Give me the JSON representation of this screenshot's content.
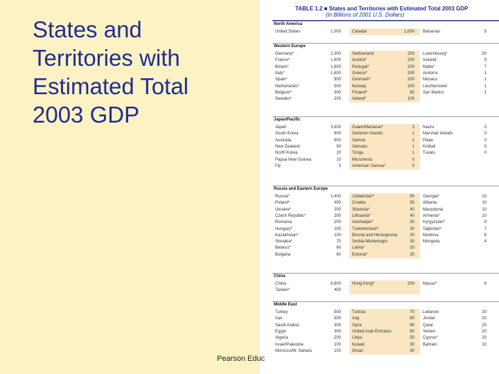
{
  "slide": {
    "title": "States and Territories with Estimated Total 2003 GDP",
    "footer": "Pearson Educ"
  },
  "table": {
    "title": "TABLE 1.2 ■ States and Territories with Estimated Total 2003 GDP",
    "subtitle": "(In Billions of 2001 U.S. Dollars)",
    "regions": [
      {
        "name": "North America",
        "rows": [
          [
            [
              "United States",
              "1,000"
            ],
            [
              "Canada",
              "1,000"
            ],
            [
              "Bahamas",
              "5"
            ]
          ]
        ]
      },
      {
        "name": "Western Europe",
        "rows": [
          [
            [
              "Germany*",
              "2,300"
            ],
            [
              "Switzerland",
              "200"
            ],
            [
              "Luxembourg*",
              "20"
            ]
          ],
          [
            [
              "France*",
              "1,600"
            ],
            [
              "Austria*",
              "200"
            ],
            [
              "Iceland",
              "9"
            ]
          ],
          [
            [
              "Britain*",
              "1,600"
            ],
            [
              "Portugal*",
              "200"
            ],
            [
              "Malta*",
              "7"
            ]
          ],
          [
            [
              "Italy*",
              "1,600"
            ],
            [
              "Greece*",
              "200"
            ],
            [
              "Andorra",
              "1"
            ]
          ],
          [
            [
              "Spain*",
              "900"
            ],
            [
              "Denmark*",
              "200"
            ],
            [
              "Monaco",
              "1"
            ]
          ],
          [
            [
              "Netherlands*",
              "500"
            ],
            [
              "Norway",
              "200"
            ],
            [
              "Liechtenstein",
              "1"
            ]
          ],
          [
            [
              "Belgium*",
              "300"
            ],
            [
              "Finland*",
              "80"
            ],
            [
              "San Marino",
              "1"
            ]
          ],
          [
            [
              "Sweden*",
              "200"
            ],
            [
              "Ireland*",
              "100"
            ],
            [
              "",
              ""
            ]
          ]
        ]
      },
      {
        "name": "Japan/Pacific",
        "rows": [
          [
            [
              "Japan",
              "3,600"
            ],
            [
              "Guam/Marianas*",
              "3"
            ],
            [
              "Nauru",
              "0"
            ]
          ],
          [
            [
              "South Korea",
              "900"
            ],
            [
              "Solomon Islands",
              "1"
            ],
            [
              "Marshall Islands",
              "0"
            ]
          ],
          [
            [
              "Australia",
              "600"
            ],
            [
              "Samoa",
              "1"
            ],
            [
              "Palau",
              "0"
            ]
          ],
          [
            [
              "New Zealand",
              "90"
            ],
            [
              "Vanuatu",
              "1"
            ],
            [
              "Kiribati",
              "0"
            ]
          ],
          [
            [
              "North Korea",
              "20"
            ],
            [
              "Tonga",
              "1"
            ],
            [
              "Tuvalu",
              "0"
            ]
          ],
          [
            [
              "Papua New Guinea",
              "10"
            ],
            [
              "Micronesia",
              "0"
            ],
            [
              "",
              ""
            ]
          ],
          [
            [
              "Fiji",
              "5"
            ],
            [
              "American Samoa*",
              "0"
            ],
            [
              "",
              ""
            ]
          ]
        ]
      },
      {
        "name": "Russia and Eastern Europe",
        "rows": [
          [
            [
              "Russia*",
              "1,400"
            ],
            [
              "Uzbekistan*",
              "50"
            ],
            [
              "Georgia*",
              "10"
            ]
          ],
          [
            [
              "Poland*",
              "400"
            ],
            [
              "Croatia",
              "50"
            ],
            [
              "Albania",
              "10"
            ]
          ],
          [
            [
              "Ukraine*",
              "200"
            ],
            [
              "Slovenia*",
              "40"
            ],
            [
              "Macedonia",
              "10"
            ]
          ],
          [
            [
              "Czech Republic*",
              "200"
            ],
            [
              "Lithuania*",
              "40"
            ],
            [
              "Armenia*",
              "10"
            ]
          ],
          [
            [
              "Romania",
              "200"
            ],
            [
              "Azerbaijan*",
              "30"
            ],
            [
              "Kyrgyzstan*",
              "9"
            ]
          ],
          [
            [
              "Hungary*",
              "200"
            ],
            [
              "Turkmenistan*",
              "30"
            ],
            [
              "Tajikistan*",
              "7"
            ]
          ],
          [
            [
              "Kazakhstan*",
              "100"
            ],
            [
              "Bosnia and Herzegovina",
              "30"
            ],
            [
              "Moldova",
              "6"
            ]
          ],
          [
            [
              "Slovakia*",
              "70"
            ],
            [
              "Serbia-Montenegro",
              "30"
            ],
            [
              "Mongolia",
              "4"
            ]
          ],
          [
            [
              "Belarus*",
              "60"
            ],
            [
              "Latvia*",
              "20"
            ],
            [
              "",
              ""
            ]
          ],
          [
            [
              "Bulgaria",
              "60"
            ],
            [
              "Estonia*",
              "20"
            ],
            [
              "",
              ""
            ]
          ]
        ]
      },
      {
        "name": "China",
        "rows": [
          [
            [
              "China",
              "6,600"
            ],
            [
              "Hong Kong*",
              "200"
            ],
            [
              "Macau*",
              "8"
            ]
          ],
          [
            [
              "Taiwan*",
              "400"
            ],
            [
              "",
              ""
            ],
            [
              "",
              ""
            ]
          ]
        ]
      },
      {
        "name": "Middle East",
        "rows": [
          [
            [
              "Turkey",
              "500"
            ],
            [
              "Tunisia",
              "70"
            ],
            [
              "Lebanon",
              "20"
            ]
          ],
          [
            [
              "Iran",
              "500"
            ],
            [
              "Iraq",
              "60"
            ],
            [
              "Jordan",
              "20"
            ]
          ],
          [
            [
              "Saudi Arabia",
              "300"
            ],
            [
              "Syria",
              "60"
            ],
            [
              "Qatar",
              "20"
            ]
          ],
          [
            [
              "Egypt",
              "300"
            ],
            [
              "United Arab Emirates",
              "50"
            ],
            [
              "Yemen",
              "20"
            ]
          ],
          [
            [
              "Algeria",
              "200"
            ],
            [
              "Libya",
              "50"
            ],
            [
              "Cyprus*",
              "20"
            ]
          ],
          [
            [
              "Israel/Palestine",
              "100"
            ],
            [
              "Kuwait",
              "30"
            ],
            [
              "Bahrain",
              "10"
            ]
          ],
          [
            [
              "Morocco/W. Sahara",
              "100"
            ],
            [
              "Oman",
              "30"
            ],
            [
              "",
              ""
            ]
          ]
        ]
      }
    ]
  },
  "colors": {
    "background": "#fdf2c4",
    "title": "#1e2e8f",
    "shade": "#fbe6c4"
  }
}
